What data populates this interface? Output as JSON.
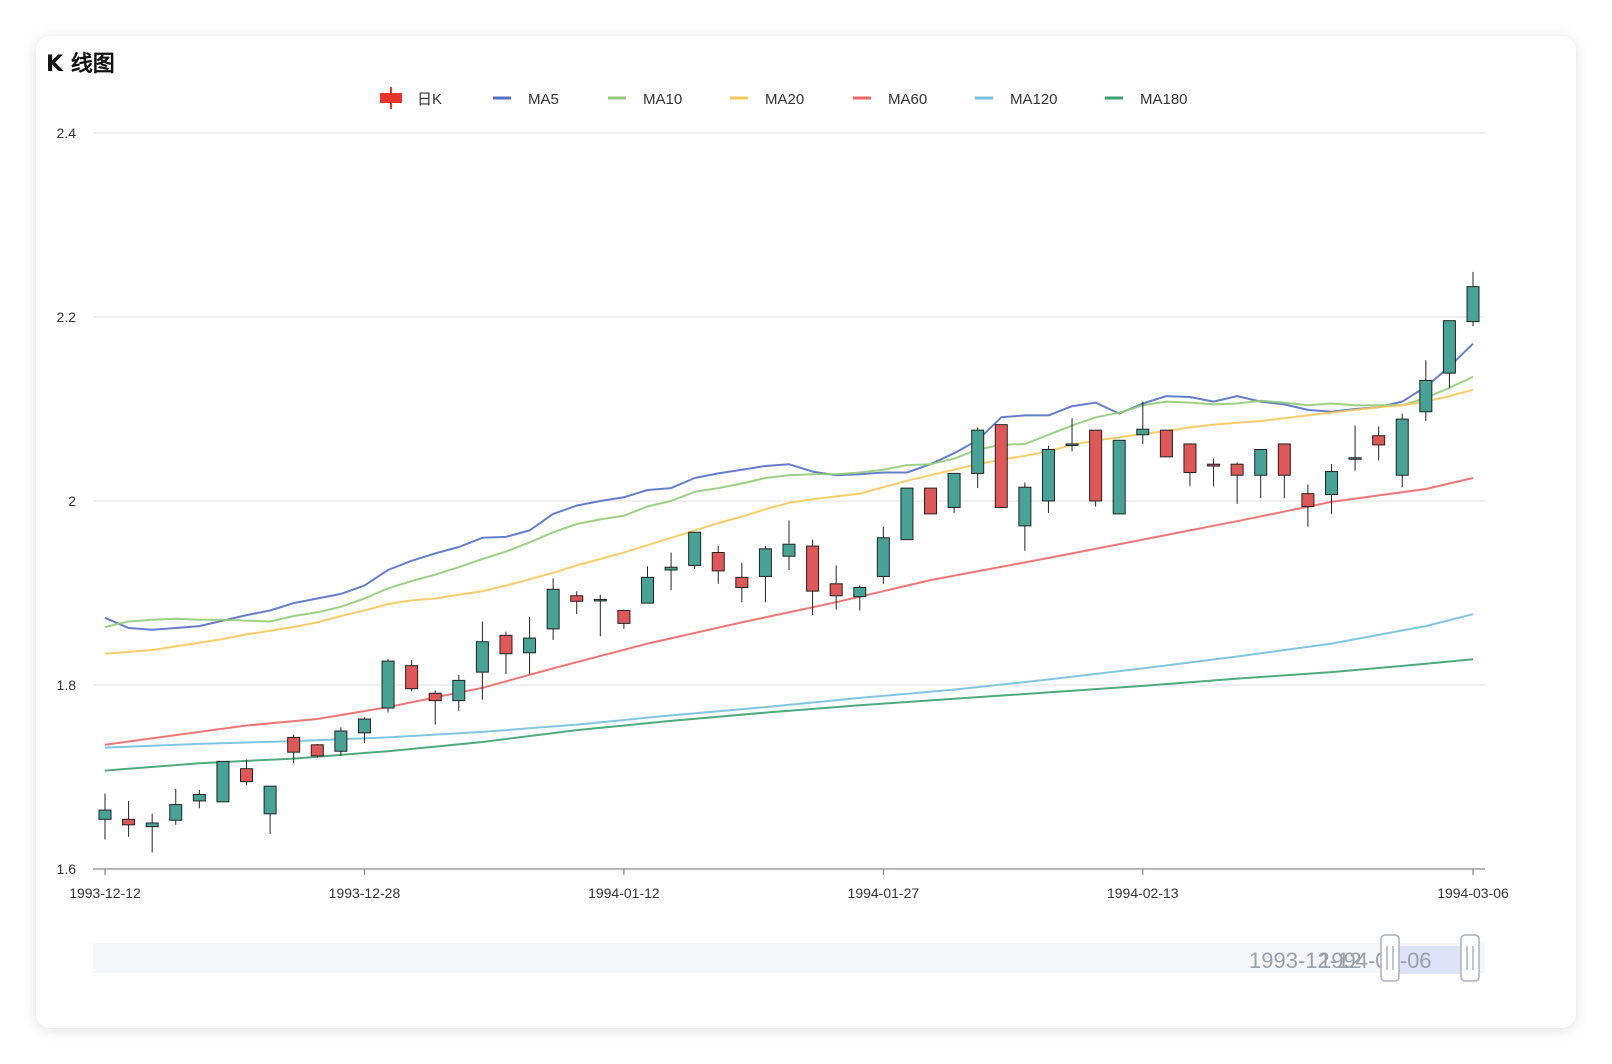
{
  "title": "K 线图",
  "chart_data": {
    "type": "candlestick",
    "ylim": [
      1.6,
      2.4
    ],
    "y_ticks": [
      "1.6",
      "1.8",
      "2",
      "2.2",
      "2.4"
    ],
    "x_tick_labels": [
      "1993-12-12",
      "1993-12-28",
      "1994-01-12",
      "1994-01-27",
      "1994-02-13",
      "1994-03-06"
    ],
    "x_tick_indices": [
      0,
      11,
      22,
      33,
      44,
      58
    ],
    "grid": true,
    "legend_position": "top-center",
    "legend": [
      {
        "name": "日K",
        "color": "#e8342a",
        "kind": "candle"
      },
      {
        "name": "MA5",
        "color": "#5470c6",
        "kind": "line"
      },
      {
        "name": "MA10",
        "color": "#91cc75",
        "kind": "line"
      },
      {
        "name": "MA20",
        "color": "#fac858",
        "kind": "line"
      },
      {
        "name": "MA60",
        "color": "#ee6666",
        "kind": "line"
      },
      {
        "name": "MA120",
        "color": "#73c0de",
        "kind": "line"
      },
      {
        "name": "MA180",
        "color": "#3ba272",
        "kind": "line"
      }
    ],
    "up_color": "#47a396",
    "down_color": "#e05757",
    "candles": [
      [
        1.654,
        1.664,
        1.632,
        1.682
      ],
      [
        1.654,
        1.648,
        1.635,
        1.674
      ],
      [
        1.646,
        1.65,
        1.618,
        1.66
      ],
      [
        1.653,
        1.67,
        1.648,
        1.687
      ],
      [
        1.674,
        1.681,
        1.666,
        1.686
      ],
      [
        1.673,
        1.717,
        1.673,
        1.717
      ],
      [
        1.709,
        1.695,
        1.691,
        1.719
      ],
      [
        1.66,
        1.69,
        1.638,
        1.69
      ],
      [
        1.743,
        1.727,
        1.715,
        1.746
      ],
      [
        1.735,
        1.723,
        1.721,
        1.736
      ],
      [
        1.728,
        1.75,
        1.723,
        1.754
      ],
      [
        1.748,
        1.763,
        1.737,
        1.765
      ],
      [
        1.775,
        1.826,
        1.77,
        1.828
      ],
      [
        1.821,
        1.796,
        1.793,
        1.827
      ],
      [
        1.791,
        1.783,
        1.757,
        1.794
      ],
      [
        1.783,
        1.805,
        1.772,
        1.811
      ],
      [
        1.814,
        1.847,
        1.784,
        1.869
      ],
      [
        1.854,
        1.834,
        1.812,
        1.858
      ],
      [
        1.835,
        1.851,
        1.812,
        1.874
      ],
      [
        1.861,
        1.904,
        1.849,
        1.916
      ],
      [
        1.897,
        1.891,
        1.877,
        1.902
      ],
      [
        1.893,
        1.893,
        1.853,
        1.898
      ],
      [
        1.881,
        1.867,
        1.861,
        1.882
      ],
      [
        1.889,
        1.917,
        1.889,
        1.929
      ],
      [
        1.925,
        1.928,
        1.903,
        1.944
      ],
      [
        1.93,
        1.966,
        1.926,
        1.966
      ],
      [
        1.944,
        1.924,
        1.91,
        1.951
      ],
      [
        1.917,
        1.906,
        1.89,
        1.933
      ],
      [
        1.918,
        1.948,
        1.89,
        1.951
      ],
      [
        1.94,
        1.953,
        1.925,
        1.979
      ],
      [
        1.951,
        1.902,
        1.876,
        1.958
      ],
      [
        1.91,
        1.897,
        1.882,
        1.93
      ],
      [
        1.896,
        1.906,
        1.881,
        1.908
      ],
      [
        1.918,
        1.96,
        1.91,
        1.972
      ],
      [
        1.958,
        2.014,
        1.958,
        2.014
      ],
      [
        2.014,
        1.986,
        1.986,
        2.014
      ],
      [
        1.993,
        2.03,
        1.987,
        2.03
      ],
      [
        2.03,
        2.077,
        2.014,
        2.08
      ],
      [
        2.083,
        1.993,
        1.993,
        2.083
      ],
      [
        1.973,
        2.015,
        1.946,
        2.02
      ],
      [
        2.0,
        2.056,
        1.987,
        2.06
      ],
      [
        2.062,
        2.062,
        2.054,
        2.09
      ],
      [
        2.077,
        2.0,
        1.994,
        2.077
      ],
      [
        1.986,
        2.066,
        1.986,
        2.066
      ],
      [
        2.072,
        2.078,
        2.062,
        2.108
      ],
      [
        2.077,
        2.048,
        2.048,
        2.077
      ],
      [
        2.062,
        2.031,
        2.016,
        2.062
      ],
      [
        2.04,
        2.038,
        2.016,
        2.046
      ],
      [
        2.04,
        2.028,
        1.997,
        2.042
      ],
      [
        2.028,
        2.056,
        2.003,
        2.056
      ],
      [
        2.062,
        2.028,
        2.003,
        2.062
      ],
      [
        2.008,
        1.994,
        1.972,
        2.018
      ],
      [
        2.007,
        2.032,
        1.986,
        2.04
      ],
      [
        2.047,
        2.047,
        2.033,
        2.082
      ],
      [
        2.071,
        2.061,
        2.044,
        2.081
      ],
      [
        2.028,
        2.089,
        2.015,
        2.095
      ],
      [
        2.097,
        2.131,
        2.087,
        2.153
      ],
      [
        2.139,
        2.196,
        2.123,
        2.196
      ],
      [
        2.195,
        2.233,
        2.19,
        2.249
      ]
    ],
    "ma_series": [
      {
        "name": "MA5",
        "color": "#5470c6",
        "points": [
          [
            0,
            1.873
          ],
          [
            1,
            1.862
          ],
          [
            2,
            1.86
          ],
          [
            3,
            1.862
          ],
          [
            4,
            1.864
          ],
          [
            5,
            1.87
          ],
          [
            6,
            1.876
          ],
          [
            7,
            1.881
          ],
          [
            8,
            1.889
          ],
          [
            9,
            1.894
          ],
          [
            10,
            1.899
          ],
          [
            11,
            1.908
          ],
          [
            12,
            1.925
          ],
          [
            13,
            1.935
          ],
          [
            14,
            1.943
          ],
          [
            15,
            1.95
          ],
          [
            16,
            1.96
          ],
          [
            17,
            1.961
          ],
          [
            18,
            1.968
          ],
          [
            19,
            1.986
          ],
          [
            20,
            1.995
          ],
          [
            21,
            2.0
          ],
          [
            22,
            2.004
          ],
          [
            23,
            2.012
          ],
          [
            24,
            2.014
          ],
          [
            25,
            2.025
          ],
          [
            26,
            2.03
          ],
          [
            27,
            2.034
          ],
          [
            28,
            2.038
          ],
          [
            29,
            2.04
          ],
          [
            30,
            2.032
          ],
          [
            31,
            2.028
          ],
          [
            32,
            2.029
          ],
          [
            33,
            2.031
          ],
          [
            34,
            2.031
          ],
          [
            35,
            2.04
          ],
          [
            36,
            2.052
          ],
          [
            37,
            2.066
          ],
          [
            38,
            2.091
          ],
          [
            39,
            2.093
          ],
          [
            40,
            2.093
          ],
          [
            41,
            2.103
          ],
          [
            42,
            2.107
          ],
          [
            43,
            2.095
          ],
          [
            44,
            2.106
          ],
          [
            45,
            2.114
          ],
          [
            46,
            2.113
          ],
          [
            47,
            2.108
          ],
          [
            48,
            2.114
          ],
          [
            49,
            2.108
          ],
          [
            50,
            2.105
          ],
          [
            51,
            2.099
          ],
          [
            52,
            2.097
          ],
          [
            53,
            2.1
          ],
          [
            54,
            2.102
          ],
          [
            55,
            2.108
          ],
          [
            56,
            2.124
          ],
          [
            57,
            2.146
          ],
          [
            58,
            2.171
          ]
        ]
      },
      {
        "name": "MA10",
        "color": "#91cc75",
        "points": [
          [
            0,
            1.863
          ],
          [
            1,
            1.869
          ],
          [
            2,
            1.871
          ],
          [
            3,
            1.872
          ],
          [
            4,
            1.871
          ],
          [
            5,
            1.871
          ],
          [
            6,
            1.87
          ],
          [
            7,
            1.869
          ],
          [
            8,
            1.875
          ],
          [
            9,
            1.879
          ],
          [
            10,
            1.885
          ],
          [
            11,
            1.894
          ],
          [
            12,
            1.905
          ],
          [
            13,
            1.913
          ],
          [
            14,
            1.92
          ],
          [
            15,
            1.928
          ],
          [
            16,
            1.937
          ],
          [
            17,
            1.945
          ],
          [
            18,
            1.955
          ],
          [
            19,
            1.966
          ],
          [
            20,
            1.975
          ],
          [
            21,
            1.98
          ],
          [
            22,
            1.984
          ],
          [
            23,
            1.994
          ],
          [
            24,
            2.0
          ],
          [
            25,
            2.01
          ],
          [
            26,
            2.014
          ],
          [
            27,
            2.019
          ],
          [
            28,
            2.025
          ],
          [
            29,
            2.028
          ],
          [
            30,
            2.029
          ],
          [
            31,
            2.029
          ],
          [
            32,
            2.031
          ],
          [
            33,
            2.034
          ],
          [
            34,
            2.039
          ],
          [
            35,
            2.04
          ],
          [
            36,
            2.046
          ],
          [
            37,
            2.056
          ],
          [
            38,
            2.061
          ],
          [
            39,
            2.062
          ],
          [
            40,
            2.072
          ],
          [
            41,
            2.082
          ],
          [
            42,
            2.091
          ],
          [
            43,
            2.096
          ],
          [
            44,
            2.104
          ],
          [
            45,
            2.108
          ],
          [
            46,
            2.107
          ],
          [
            47,
            2.105
          ],
          [
            48,
            2.106
          ],
          [
            49,
            2.109
          ],
          [
            50,
            2.107
          ],
          [
            51,
            2.104
          ],
          [
            52,
            2.106
          ],
          [
            53,
            2.104
          ],
          [
            54,
            2.104
          ],
          [
            55,
            2.104
          ],
          [
            56,
            2.112
          ],
          [
            57,
            2.123
          ],
          [
            58,
            2.135
          ]
        ]
      },
      {
        "name": "MA20",
        "color": "#fac858",
        "points": [
          [
            0,
            1.834
          ],
          [
            1,
            1.836
          ],
          [
            2,
            1.838
          ],
          [
            3,
            1.842
          ],
          [
            4,
            1.846
          ],
          [
            5,
            1.85
          ],
          [
            6,
            1.855
          ],
          [
            7,
            1.859
          ],
          [
            8,
            1.863
          ],
          [
            9,
            1.868
          ],
          [
            10,
            1.875
          ],
          [
            11,
            1.881
          ],
          [
            12,
            1.888
          ],
          [
            13,
            1.892
          ],
          [
            14,
            1.894
          ],
          [
            15,
            1.898
          ],
          [
            16,
            1.902
          ],
          [
            17,
            1.908
          ],
          [
            18,
            1.915
          ],
          [
            19,
            1.922
          ],
          [
            20,
            1.93
          ],
          [
            21,
            1.937
          ],
          [
            22,
            1.944
          ],
          [
            23,
            1.952
          ],
          [
            24,
            1.96
          ],
          [
            25,
            1.968
          ],
          [
            26,
            1.976
          ],
          [
            27,
            1.983
          ],
          [
            28,
            1.991
          ],
          [
            29,
            1.998
          ],
          [
            30,
            2.002
          ],
          [
            31,
            2.005
          ],
          [
            32,
            2.008
          ],
          [
            33,
            2.015
          ],
          [
            34,
            2.022
          ],
          [
            35,
            2.028
          ],
          [
            36,
            2.034
          ],
          [
            37,
            2.04
          ],
          [
            38,
            2.045
          ],
          [
            39,
            2.049
          ],
          [
            40,
            2.054
          ],
          [
            41,
            2.061
          ],
          [
            42,
            2.066
          ],
          [
            43,
            2.069
          ],
          [
            44,
            2.073
          ],
          [
            45,
            2.076
          ],
          [
            46,
            2.08
          ],
          [
            47,
            2.083
          ],
          [
            48,
            2.085
          ],
          [
            49,
            2.087
          ],
          [
            50,
            2.09
          ],
          [
            51,
            2.093
          ],
          [
            52,
            2.096
          ],
          [
            53,
            2.099
          ],
          [
            54,
            2.102
          ],
          [
            55,
            2.104
          ],
          [
            56,
            2.108
          ],
          [
            57,
            2.114
          ],
          [
            58,
            2.121
          ]
        ]
      },
      {
        "name": "MA60",
        "color": "#ee6666",
        "points": [
          [
            0,
            1.735
          ],
          [
            4,
            1.749
          ],
          [
            6,
            1.756
          ],
          [
            9,
            1.763
          ],
          [
            12,
            1.776
          ],
          [
            16,
            1.797
          ],
          [
            19,
            1.818
          ],
          [
            23,
            1.845
          ],
          [
            27,
            1.868
          ],
          [
            31,
            1.89
          ],
          [
            35,
            1.914
          ],
          [
            40,
            1.938
          ],
          [
            44,
            1.958
          ],
          [
            48,
            1.978
          ],
          [
            52,
            1.999
          ],
          [
            56,
            2.013
          ],
          [
            58,
            2.025
          ]
        ]
      },
      {
        "name": "MA120",
        "color": "#73c0de",
        "points": [
          [
            0,
            1.732
          ],
          [
            4,
            1.736
          ],
          [
            8,
            1.739
          ],
          [
            12,
            1.743
          ],
          [
            16,
            1.749
          ],
          [
            20,
            1.757
          ],
          [
            24,
            1.767
          ],
          [
            28,
            1.776
          ],
          [
            32,
            1.786
          ],
          [
            36,
            1.795
          ],
          [
            40,
            1.806
          ],
          [
            44,
            1.818
          ],
          [
            48,
            1.831
          ],
          [
            52,
            1.845
          ],
          [
            56,
            1.864
          ],
          [
            58,
            1.877
          ]
        ]
      },
      {
        "name": "MA180",
        "color": "#3ba272",
        "points": [
          [
            0,
            1.707
          ],
          [
            4,
            1.715
          ],
          [
            8,
            1.72
          ],
          [
            12,
            1.728
          ],
          [
            16,
            1.738
          ],
          [
            20,
            1.751
          ],
          [
            24,
            1.761
          ],
          [
            28,
            1.77
          ],
          [
            32,
            1.778
          ],
          [
            36,
            1.785
          ],
          [
            40,
            1.792
          ],
          [
            44,
            1.799
          ],
          [
            48,
            1.807
          ],
          [
            52,
            1.814
          ],
          [
            56,
            1.823
          ],
          [
            58,
            1.828
          ]
        ]
      }
    ],
    "data_zoom": {
      "start_label": "1993-12-12",
      "end_label": "1994-03-06"
    }
  }
}
